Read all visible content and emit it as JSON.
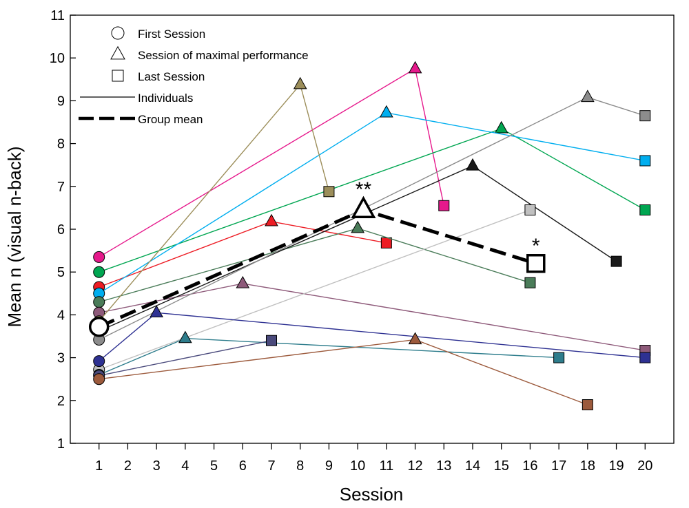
{
  "chart_data": {
    "type": "line",
    "title": "",
    "xlabel": "Session",
    "ylabel": "Mean n (visual n-back)",
    "xlim": [
      0,
      21
    ],
    "ylim": [
      1,
      11
    ],
    "x_ticks": [
      "1",
      "2",
      "3",
      "4",
      "5",
      "6",
      "7",
      "8",
      "9",
      "10",
      "11",
      "12",
      "13",
      "14",
      "15",
      "16",
      "17",
      "18",
      "19",
      "20"
    ],
    "y_ticks": [
      "1",
      "2",
      "3",
      "4",
      "5",
      "6",
      "7",
      "8",
      "9",
      "10",
      "11"
    ],
    "legend": {
      "placement": "top-left",
      "entries": [
        {
          "label": "First Session",
          "symbol": "circle"
        },
        {
          "label": "Session of maximal performance",
          "symbol": "triangle"
        },
        {
          "label": "Last Session",
          "symbol": "square"
        },
        {
          "label": "Individuals",
          "symbol": "thin-line"
        },
        {
          "label": "Group mean",
          "symbol": "dashed-line"
        }
      ]
    },
    "series": [
      {
        "name": "Individual (magenta)",
        "color": "#e6198c",
        "points": [
          {
            "x": 1,
            "y": 5.35
          },
          {
            "x": 12,
            "y": 9.75
          },
          {
            "x": 13,
            "y": 6.55
          }
        ]
      },
      {
        "name": "Individual (green)",
        "color": "#00a651",
        "points": [
          {
            "x": 1,
            "y": 5.0
          },
          {
            "x": 15,
            "y": 8.35
          },
          {
            "x": 20,
            "y": 6.45
          }
        ]
      },
      {
        "name": "Individual (red)",
        "color": "#ed1c24",
        "points": [
          {
            "x": 1,
            "y": 4.65
          },
          {
            "x": 7,
            "y": 6.18
          },
          {
            "x": 11,
            "y": 5.68
          }
        ]
      },
      {
        "name": "Individual (sky blue)",
        "color": "#00aeef",
        "points": [
          {
            "x": 1,
            "y": 4.5
          },
          {
            "x": 11,
            "y": 8.72
          },
          {
            "x": 20,
            "y": 7.6
          }
        ]
      },
      {
        "name": "Individual (dark green)",
        "color": "#4a7c59",
        "points": [
          {
            "x": 1,
            "y": 4.3
          },
          {
            "x": 10,
            "y": 6.02
          },
          {
            "x": 16,
            "y": 4.75
          }
        ]
      },
      {
        "name": "Individual (mauve)",
        "color": "#8e5a7a",
        "points": [
          {
            "x": 1,
            "y": 4.05
          },
          {
            "x": 6,
            "y": 4.73
          },
          {
            "x": 20,
            "y": 3.17
          }
        ]
      },
      {
        "name": "Individual (olive)",
        "color": "#9c8e5a",
        "points": [
          {
            "x": 1,
            "y": 3.85
          },
          {
            "x": 8,
            "y": 9.38
          },
          {
            "x": 9,
            "y": 6.88
          }
        ]
      },
      {
        "name": "Individual (black)",
        "color": "#1a1a1a",
        "points": [
          {
            "x": 1,
            "y": 3.62
          },
          {
            "x": 14,
            "y": 7.48
          },
          {
            "x": 19,
            "y": 5.25
          }
        ]
      },
      {
        "name": "Individual (gray)",
        "color": "#8c8c8c",
        "points": [
          {
            "x": 1,
            "y": 3.42
          },
          {
            "x": 18,
            "y": 9.08
          },
          {
            "x": 20,
            "y": 8.65
          }
        ]
      },
      {
        "name": "Individual (light gray)",
        "color": "#c0c0c0",
        "points": [
          {
            "x": 1,
            "y": 2.72
          },
          {
            "x": 16,
            "y": 6.45
          }
        ]
      },
      {
        "name": "Individual (navy)",
        "color": "#2e3192",
        "points": [
          {
            "x": 1,
            "y": 2.92
          },
          {
            "x": 3,
            "y": 4.05
          },
          {
            "x": 20,
            "y": 3.0
          }
        ]
      },
      {
        "name": "Individual (teal)",
        "color": "#2e7d8c",
        "points": [
          {
            "x": 1,
            "y": 2.6
          },
          {
            "x": 4,
            "y": 3.45
          },
          {
            "x": 17,
            "y": 3.0
          }
        ]
      },
      {
        "name": "Individual (slate)",
        "color": "#4a4a7c",
        "points": [
          {
            "x": 1,
            "y": 2.58
          },
          {
            "x": 7,
            "y": 3.4
          }
        ]
      },
      {
        "name": "Individual (brown)",
        "color": "#9c5a3c",
        "points": [
          {
            "x": 1,
            "y": 2.5
          },
          {
            "x": 12,
            "y": 3.42
          },
          {
            "x": 18,
            "y": 1.9
          }
        ]
      }
    ],
    "group_mean": {
      "name": "Group mean",
      "color": "#000000",
      "points": [
        {
          "x": 1,
          "y": 3.72
        },
        {
          "x": 10.2,
          "y": 6.45
        },
        {
          "x": 16.2,
          "y": 5.2
        }
      ]
    },
    "annotations": [
      {
        "text": "**",
        "x": 10.2,
        "y": 6.45,
        "target": "Session of maximal performance (group mean)"
      },
      {
        "text": "*",
        "x": 16.2,
        "y": 5.2,
        "target": "Last Session (group mean)"
      }
    ]
  }
}
